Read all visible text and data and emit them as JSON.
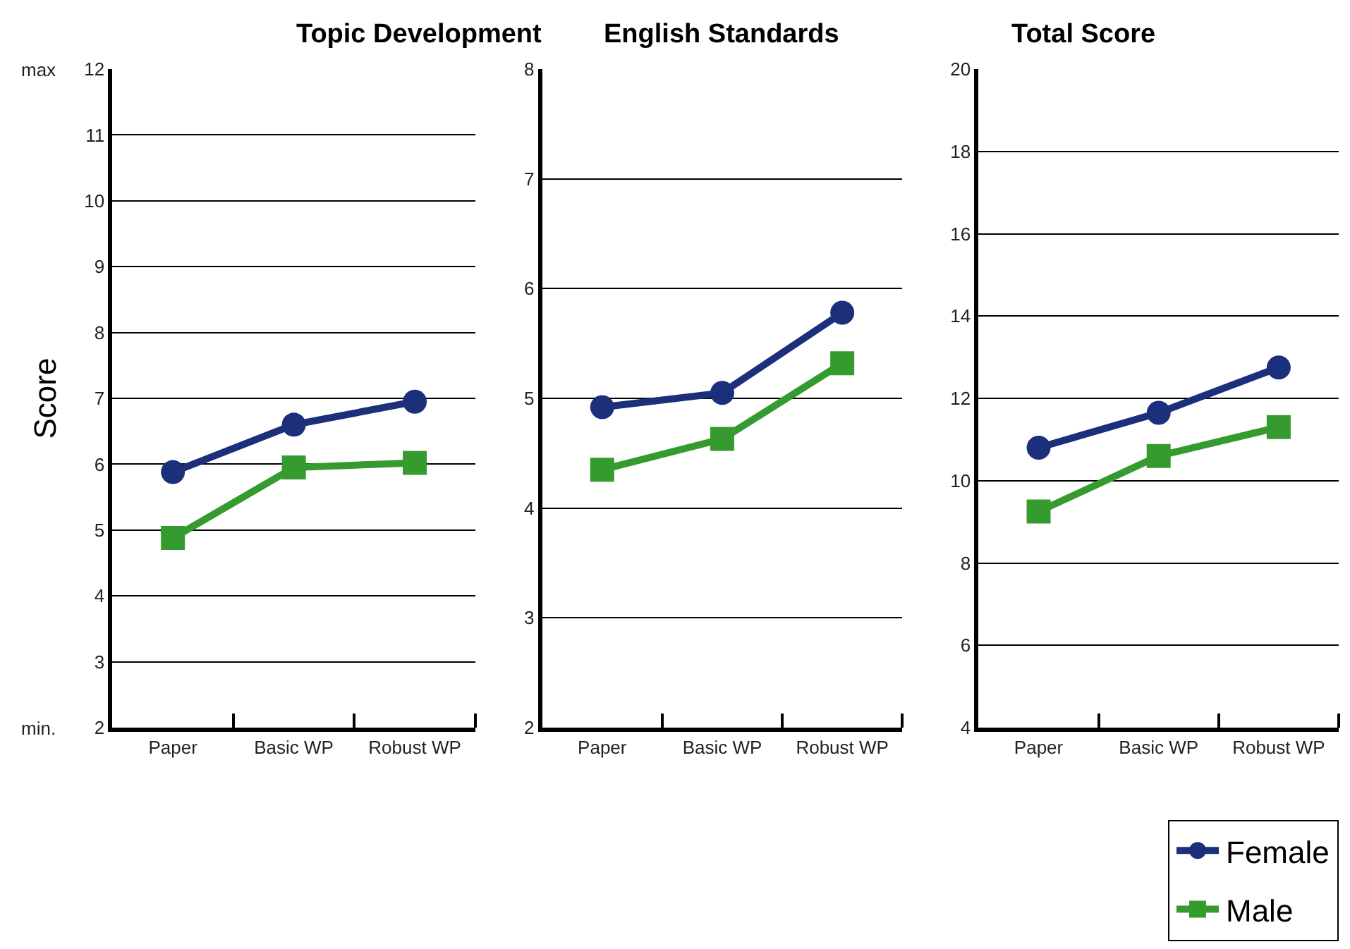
{
  "chart_data": [
    {
      "type": "line",
      "title": "Topic Development",
      "ylabel": "Score",
      "categories": [
        "Paper",
        "Basic WP",
        "Robust WP"
      ],
      "series": [
        {
          "name": "Female",
          "color": "#1b2f7a",
          "marker": "circle",
          "values": [
            5.88,
            6.6,
            6.95
          ]
        },
        {
          "name": "Male",
          "color": "#359b2f",
          "marker": "square",
          "values": [
            4.88,
            5.95,
            6.02
          ]
        }
      ],
      "ylim": [
        2,
        12
      ],
      "yticks": [
        2,
        3,
        4,
        5,
        6,
        7,
        8,
        9,
        10,
        11,
        12
      ],
      "grid": "y",
      "legend": "bottom right",
      "annotations": [
        "max",
        "min."
      ]
    },
    {
      "type": "line",
      "title": "English Standards",
      "categories": [
        "Paper",
        "Basic WP",
        "Robust WP"
      ],
      "series": [
        {
          "color": "#1b2f7a",
          "marker": "circle",
          "values": [
            4.92,
            5.05,
            5.78
          ]
        },
        {
          "color": "#359b2f",
          "marker": "square",
          "values": [
            4.35,
            4.63,
            5.32
          ]
        }
      ],
      "ylim": [
        2,
        8
      ],
      "yticks": [
        2,
        3,
        4,
        5,
        6,
        7,
        8
      ],
      "grid": "y",
      "legend": false
    },
    {
      "type": "line",
      "title": "Total Score",
      "categories": [
        "Paper",
        "Basic WP",
        "Robust WP"
      ],
      "series": [
        {
          "color": "#1b2f7a",
          "marker": "circle",
          "values": [
            10.8,
            11.65,
            12.75
          ]
        },
        {
          "color": "#359b2f",
          "marker": "square",
          "values": [
            9.25,
            10.6,
            11.3
          ]
        }
      ],
      "ylim": [
        4,
        20
      ],
      "yticks": [
        4,
        6,
        8,
        10,
        12,
        14,
        16,
        18,
        20
      ],
      "grid": "y",
      "legend": false
    }
  ]
}
